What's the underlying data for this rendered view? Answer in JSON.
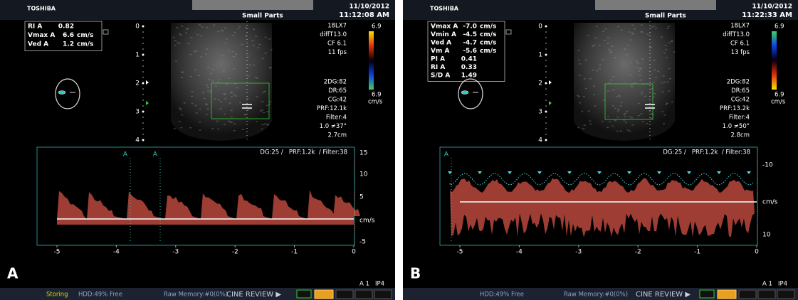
{
  "panels": [
    {
      "label": "A",
      "header": {
        "brand": "TOSHIBA",
        "mode": "Small Parts",
        "date": "11/10/2012",
        "time": "11:12:08 AM"
      },
      "measurements": [
        {
          "name": "RI A",
          "value": "0.82"
        },
        {
          "name": "Vmax A",
          "value": "6.6",
          "unit": "cm/s"
        },
        {
          "name": "Ved A",
          "value": "1.2",
          "unit": "cm/s"
        }
      ],
      "depth_labels": [
        "0",
        "1",
        "2",
        "3",
        "4"
      ],
      "probe": [
        "18LX7",
        "diffT13.0",
        "CF 6.1",
        "11 fps"
      ],
      "color_scale": {
        "top": "6.9",
        "bottom": "6.9",
        "unit": "cm/s"
      },
      "settings": [
        "2DG:82",
        "DR:65",
        "CG:42",
        "PRF:12.1k",
        "Filter:4",
        "1.0 ≠37°",
        "2.7cm"
      ],
      "doppler": {
        "settings": "DG:25 /   PRF:1.2k  / Filter:38",
        "markers": [
          "A",
          "A"
        ],
        "velocity_labels": [
          "15",
          "10",
          "5",
          "cm/s",
          "-5"
        ],
        "time_labels": [
          "-5",
          "-4",
          "-3",
          "-2",
          "-1",
          "0"
        ]
      },
      "footer": [
        "A 1",
        "IP4"
      ],
      "status": [
        "Storing",
        "HDD:49% Free",
        "Raw Memory:#0(0%)",
        "CINE REVIEW ▶"
      ]
    },
    {
      "label": "B",
      "header": {
        "brand": "TOSHIBA",
        "mode": "Small Parts",
        "date": "11/10/2012",
        "time": "11:22:33 AM"
      },
      "measurements": [
        {
          "name": "Vmax A",
          "value": "-7.0",
          "unit": "cm/s"
        },
        {
          "name": "Vmin A",
          "value": "-4.5",
          "unit": "cm/s"
        },
        {
          "name": "Ved A",
          "value": "-4.7",
          "unit": "cm/s"
        },
        {
          "name": "Vm A",
          "value": "-5.6",
          "unit": "cm/s"
        },
        {
          "name": "PI A",
          "value": "0.41"
        },
        {
          "name": "RI A",
          "value": "0.33"
        },
        {
          "name": "S/D A",
          "value": "1.49"
        }
      ],
      "depth_labels": [
        "0",
        "1",
        "2",
        "3",
        "4"
      ],
      "probe": [
        "18LX7",
        "diffT13.0",
        "CF 6.1",
        "13 fps"
      ],
      "color_scale": {
        "top": "6.9",
        "bottom": "6.9",
        "unit": "cm/s"
      },
      "settings": [
        "2DG:82",
        "DR:65",
        "CG:42",
        "PRF:13.2k",
        "Filter:4",
        "1.0 ≠50°",
        "2.8cm"
      ],
      "doppler": {
        "settings": "DG:25 /   PRF:1.2k  / Filter:38",
        "markers": [
          "A"
        ],
        "velocity_labels": [
          "-10",
          "cm/s",
          "10"
        ],
        "time_labels": [
          "-5",
          "-4",
          "-3",
          "-2",
          "-1",
          "0"
        ]
      },
      "footer": [
        "A 1",
        "IP4"
      ],
      "status": [
        "HDD:49% Free",
        "Raw Memory:#0(0%)",
        "CINE REVIEW ▶"
      ]
    }
  ]
}
